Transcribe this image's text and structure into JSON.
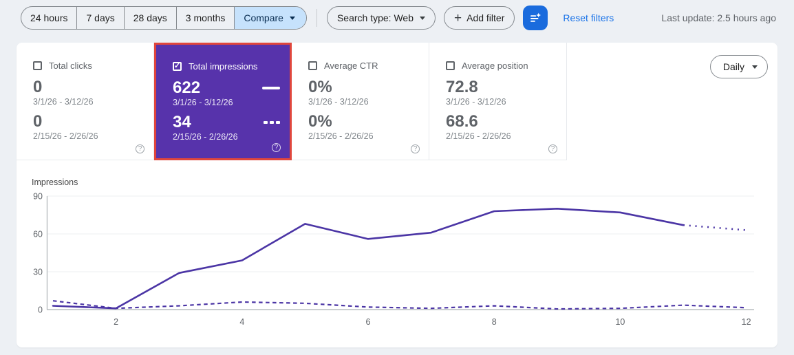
{
  "toolbar": {
    "ranges": [
      "24 hours",
      "7 days",
      "28 days",
      "3 months"
    ],
    "compare_label": "Compare",
    "search_type_label": "Search type: Web",
    "add_filter_label": "Add filter",
    "reset_filters_label": "Reset filters",
    "last_update": "Last update: 2.5 hours ago"
  },
  "metrics": {
    "period1": "3/1/26 - 3/12/26",
    "period2": "2/15/26 - 2/26/26",
    "granularity_label": "Daily",
    "cards": [
      {
        "label": "Total clicks",
        "checked": false,
        "value1": "0",
        "value2": "0"
      },
      {
        "label": "Total impressions",
        "checked": true,
        "value1": "622",
        "value2": "34"
      },
      {
        "label": "Average CTR",
        "checked": false,
        "value1": "0%",
        "value2": "0%"
      },
      {
        "label": "Average position",
        "checked": false,
        "value1": "72.8",
        "value2": "68.6"
      }
    ]
  },
  "icons": {
    "help": "?",
    "plus": "+",
    "check": "✓"
  },
  "colors": {
    "accent_blue": "#1a73e8",
    "filter_button_blue": "#1a6bdd",
    "compare_chip_bg": "#c6e2fc",
    "selected_card_purple": "#5733ab",
    "selection_border_red": "#e0463c",
    "chart_line_purple": "#4b35a5"
  },
  "chart_data": {
    "type": "line",
    "title": "Impressions",
    "x": [
      1,
      2,
      3,
      4,
      5,
      6,
      7,
      8,
      9,
      10,
      11,
      12
    ],
    "xticks": [
      2,
      4,
      6,
      8,
      10,
      12
    ],
    "yticks": [
      0,
      30,
      60,
      90
    ],
    "ylim": [
      0,
      90
    ],
    "grid": "horizontal",
    "legend": "none",
    "series": [
      {
        "name": "3/1/26 - 3/12/26",
        "style": "solid",
        "dotted_from_index": 10,
        "values": [
          3,
          1,
          29,
          39,
          68,
          56,
          61,
          78,
          80,
          77,
          67,
          63
        ]
      },
      {
        "name": "2/15/26 - 2/26/26",
        "style": "dashed",
        "values": [
          7,
          1,
          3,
          6,
          5,
          2,
          1,
          3,
          0.5,
          1,
          3.5,
          1.5
        ]
      }
    ]
  }
}
